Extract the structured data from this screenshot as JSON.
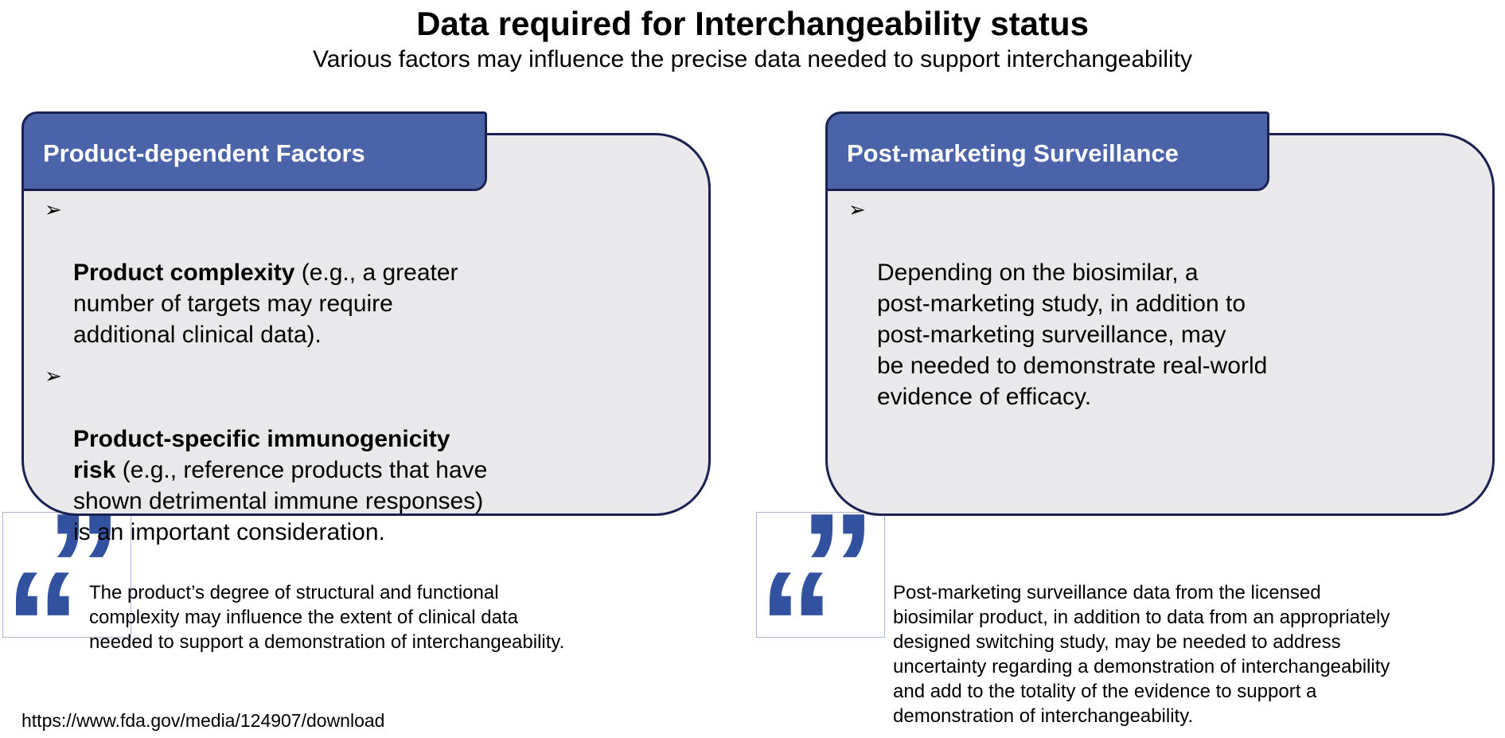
{
  "page": {
    "title": "Data required for Interchangeability status",
    "subtitle": "Various factors may influence the precise data needed to support interchangeability",
    "source_url": "https://www.fda.gov/media/124907/download"
  },
  "panels": [
    {
      "header": "Product-dependent Factors",
      "bullets": [
        {
          "bold": "Product complexity",
          "rest": " (e.g., a greater\nnumber of targets may require\nadditional clinical data)."
        },
        {
          "bold": "Product-specific immunogenicity\nrisk",
          "rest": " (e.g., reference products that have\nshown detrimental immune responses)\nis an important consideration."
        }
      ],
      "quote": "The product’s degree of structural and functional\ncomplexity may influence the extent of clinical data\nneeded to support a demonstration of interchangeability."
    },
    {
      "header": "Post-marketing Surveillance",
      "bullets": [
        {
          "bold": "",
          "rest": "Depending on the biosimilar, a\npost-marketing study, in addition to\npost-marketing surveillance, may\nbe needed to demonstrate real-world\nevidence of efficacy."
        }
      ],
      "quote": "Post-marketing surveillance data from the licensed\nbiosimilar product, in addition to data from an appropriately\ndesigned switching study, may be needed to address\nuncertainty regarding a demonstration of interchangeability\nand add to the totality of the evidence to support a\ndemonstration of interchangeability."
    }
  ],
  "icons": {
    "bullet": "➢",
    "open_quote": "“",
    "close_quote": "”"
  },
  "colors": {
    "navy": "#1b2150",
    "tab_blue": "#4b63a9",
    "panel_gray": "#e9e9eb",
    "quote_blue": "#32519e",
    "quote_box_border": "#a9b6d4"
  }
}
